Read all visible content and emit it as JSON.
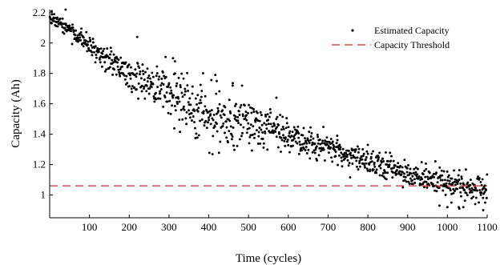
{
  "chart_data": {
    "type": "scatter",
    "xlabel": "Time (cycles)",
    "ylabel": "Capacity (Ah)",
    "xlim": [
      0,
      1100
    ],
    "ylim": [
      0.85,
      2.22
    ],
    "x_ticks": [
      100,
      200,
      300,
      400,
      500,
      600,
      700,
      800,
      900,
      1000,
      1100
    ],
    "y_ticks": [
      1,
      1.2,
      1.4,
      1.6,
      1.8,
      2,
      2.2
    ],
    "grid": false,
    "legend_position": "top-right",
    "scatter_series": {
      "name": "Estimated Capacity",
      "color": "#000000",
      "marker": "dot",
      "count": 1100,
      "trend_points": [
        {
          "x": 0,
          "y": 2.18
        },
        {
          "x": 50,
          "y": 2.09
        },
        {
          "x": 100,
          "y": 1.98
        },
        {
          "x": 150,
          "y": 1.88
        },
        {
          "x": 200,
          "y": 1.8
        },
        {
          "x": 250,
          "y": 1.73
        },
        {
          "x": 300,
          "y": 1.66
        },
        {
          "x": 350,
          "y": 1.6
        },
        {
          "x": 400,
          "y": 1.53
        },
        {
          "x": 450,
          "y": 1.5
        },
        {
          "x": 500,
          "y": 1.47
        },
        {
          "x": 550,
          "y": 1.43
        },
        {
          "x": 600,
          "y": 1.39
        },
        {
          "x": 650,
          "y": 1.36
        },
        {
          "x": 700,
          "y": 1.32
        },
        {
          "x": 750,
          "y": 1.26
        },
        {
          "x": 800,
          "y": 1.21
        },
        {
          "x": 850,
          "y": 1.18
        },
        {
          "x": 900,
          "y": 1.15
        },
        {
          "x": 950,
          "y": 1.11
        },
        {
          "x": 1000,
          "y": 1.08
        },
        {
          "x": 1050,
          "y": 1.05
        },
        {
          "x": 1100,
          "y": 1.04
        }
      ],
      "scatter_spread": [
        {
          "x": 0,
          "sd": 0.02
        },
        {
          "x": 100,
          "sd": 0.03
        },
        {
          "x": 200,
          "sd": 0.06
        },
        {
          "x": 300,
          "sd": 0.09
        },
        {
          "x": 400,
          "sd": 0.1
        },
        {
          "x": 500,
          "sd": 0.09
        },
        {
          "x": 600,
          "sd": 0.06
        },
        {
          "x": 700,
          "sd": 0.045
        },
        {
          "x": 800,
          "sd": 0.04
        },
        {
          "x": 900,
          "sd": 0.04
        },
        {
          "x": 1000,
          "sd": 0.045
        },
        {
          "x": 1100,
          "sd": 0.04
        }
      ],
      "notable_points": [
        {
          "x": 5,
          "y": 2.21
        },
        {
          "x": 40,
          "y": 2.22
        },
        {
          "x": 220,
          "y": 2.04
        },
        {
          "x": 310,
          "y": 1.9
        },
        {
          "x": 315,
          "y": 1.88
        },
        {
          "x": 420,
          "y": 1.75
        },
        {
          "x": 460,
          "y": 1.72
        },
        {
          "x": 570,
          "y": 1.64
        },
        {
          "x": 800,
          "y": 1.33
        },
        {
          "x": 845,
          "y": 1.28
        },
        {
          "x": 980,
          "y": 0.93
        },
        {
          "x": 1000,
          "y": 0.92
        },
        {
          "x": 1010,
          "y": 0.95
        },
        {
          "x": 1030,
          "y": 0.91
        },
        {
          "x": 1040,
          "y": 0.92
        },
        {
          "x": 1070,
          "y": 0.94
        },
        {
          "x": 1090,
          "y": 0.9
        },
        {
          "x": 1095,
          "y": 0.95
        }
      ]
    },
    "threshold_series": {
      "name": "Capacity Threshold",
      "value": 1.06,
      "color": "#d62728",
      "style": "dashed"
    }
  }
}
